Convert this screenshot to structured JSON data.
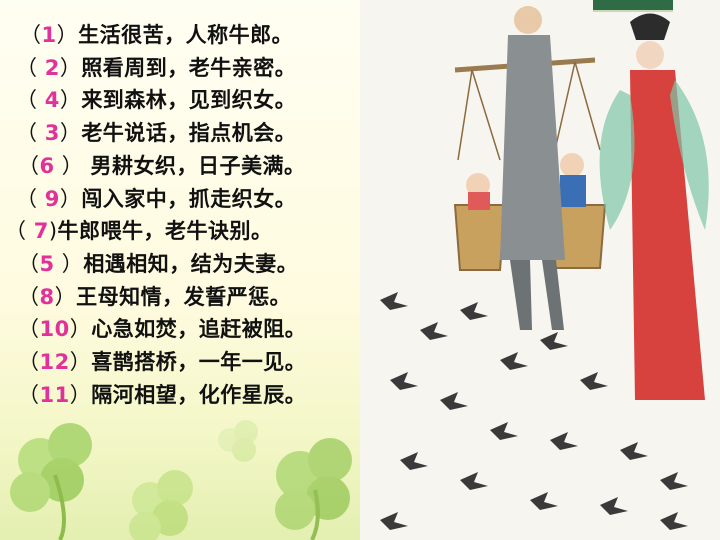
{
  "items": [
    {
      "open": "（",
      "num": "1",
      "close": "）",
      "text": "生活很苦，人称牛郎。"
    },
    {
      "open": "（ ",
      "num": "2",
      "close": "）",
      "text": "照看周到，老牛亲密。"
    },
    {
      "open": "（ ",
      "num": "4",
      "close": "）",
      "text": "来到森林，见到织女。"
    },
    {
      "open": "（ ",
      "num": "3",
      "close": "）",
      "text": "老牛说话，指点机会。"
    },
    {
      "open": "（",
      "num": "6",
      "close": " ） ",
      "text": "男耕女织，日子美满。"
    },
    {
      "open": "（ ",
      "num": "9",
      "close": "）",
      "text": "闯入家中，抓走织女。"
    },
    {
      "open": "（ ",
      "num": "7",
      "close": ")",
      "text": "牛郎喂牛，老牛诀别。"
    },
    {
      "open": "（",
      "num": "5",
      "close": " ）",
      "text": "相遇相知，结为夫妻。"
    },
    {
      "open": "（",
      "num": "8",
      "close": "）",
      "text": "王母知情，发誓严惩。"
    },
    {
      "open": "（",
      "num": "10",
      "close": "）",
      "text": "心急如焚，追赶被阻。"
    },
    {
      "open": "（",
      "num": "12",
      "close": "）",
      "text": "喜鹊搭桥，一年一见。"
    },
    {
      "open": "（",
      "num": "11",
      "close": "）",
      "text": "隔河相望，化作星辰。"
    }
  ],
  "colors": {
    "number": "#e0329a",
    "text": "#111111",
    "clover": "#8cc63f"
  },
  "illustration": "painting of cowherd carrying children in baskets, weaver girl, magpies"
}
